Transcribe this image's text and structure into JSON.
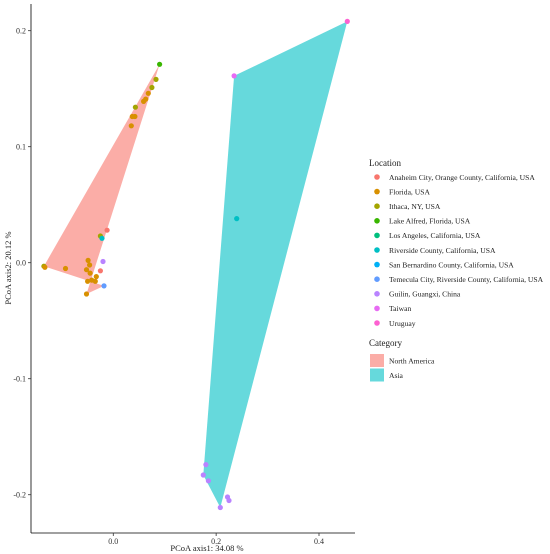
{
  "chart_data": {
    "type": "scatter",
    "xlabel": "PCoA axis1:  34.08 %",
    "ylabel": "PCoA axis2:  20.12 %",
    "xlim": [
      -0.16,
      0.47
    ],
    "ylim": [
      -0.233,
      0.223
    ],
    "x_ticks": [
      0.0,
      0.2,
      0.4
    ],
    "x_tick_labels": [
      "0.0",
      "0.2",
      "0.4"
    ],
    "y_ticks": [
      -0.2,
      -0.1,
      0.0,
      0.1,
      0.2
    ],
    "y_tick_labels": [
      "-0.2",
      "-0.1",
      "0.0",
      "0.1",
      "0.2"
    ],
    "grid": false,
    "legend_location": {
      "title": "Location",
      "items": [
        {
          "label": "Anaheim City, Orange County, California, USA",
          "color": "#F8766D"
        },
        {
          "label": "Florida, USA",
          "color": "#D89000"
        },
        {
          "label": "Ithaca, NY, USA",
          "color": "#A3A500"
        },
        {
          "label": "Lake Alfred, Florida, USA",
          "color": "#39B600"
        },
        {
          "label": "Los Angeles, California, USA",
          "color": "#00BF7D"
        },
        {
          "label": "Riverside County, California, USA",
          "color": "#00BFC4"
        },
        {
          "label": "San Bernardino County, California, USA",
          "color": "#00B0F6"
        },
        {
          "label": "Temecula City, Riverside County, California, USA",
          "color": "#619CFF"
        },
        {
          "label": "Guilin, Guangxi, China",
          "color": "#B983FF"
        },
        {
          "label": "Taiwan",
          "color": "#E76BF3"
        },
        {
          "label": "Uruguay",
          "color": "#FD61D1"
        }
      ]
    },
    "legend_category": {
      "title": "Category",
      "items": [
        {
          "label": "North America",
          "color": "#F8766D"
        },
        {
          "label": "Asia",
          "color": "#00BFC4"
        }
      ]
    },
    "hulls": [
      {
        "category": "North America",
        "color": "#F8766D",
        "opacity": 0.6,
        "points": [
          [
            -0.135,
            -0.003
          ],
          [
            0.09,
            0.171
          ],
          [
            -0.052,
            -0.027
          ],
          [
            -0.018,
            -0.02
          ]
        ]
      },
      {
        "category": "Asia",
        "color": "#00BFC4",
        "opacity": 0.6,
        "points": [
          [
            0.235,
            0.161
          ],
          [
            0.455,
            0.208
          ],
          [
            0.208,
            -0.211
          ],
          [
            0.175,
            -0.183
          ]
        ]
      }
    ],
    "points": [
      {
        "x": 0.09,
        "y": 0.171,
        "color": "#39B600"
      },
      {
        "x": 0.083,
        "y": 0.158,
        "color": "#A3A500"
      },
      {
        "x": 0.075,
        "y": 0.151,
        "color": "#A3A500"
      },
      {
        "x": 0.068,
        "y": 0.146,
        "color": "#D89000"
      },
      {
        "x": 0.063,
        "y": 0.141,
        "color": "#D89000"
      },
      {
        "x": 0.059,
        "y": 0.139,
        "color": "#D89000"
      },
      {
        "x": 0.043,
        "y": 0.134,
        "color": "#A3A500"
      },
      {
        "x": 0.042,
        "y": 0.126,
        "color": "#D89000"
      },
      {
        "x": 0.037,
        "y": 0.126,
        "color": "#D89000"
      },
      {
        "x": 0.035,
        "y": 0.118,
        "color": "#D89000"
      },
      {
        "x": -0.025,
        "y": 0.023,
        "color": "#A3A500"
      },
      {
        "x": -0.022,
        "y": 0.021,
        "color": "#00BFC4"
      },
      {
        "x": -0.012,
        "y": 0.028,
        "color": "#F8766D"
      },
      {
        "x": -0.135,
        "y": -0.003,
        "color": "#A3A500"
      },
      {
        "x": -0.133,
        "y": -0.004,
        "color": "#D89000"
      },
      {
        "x": -0.093,
        "y": -0.005,
        "color": "#D89000"
      },
      {
        "x": -0.049,
        "y": 0.002,
        "color": "#D89000"
      },
      {
        "x": -0.046,
        "y": -0.002,
        "color": "#D89000"
      },
      {
        "x": -0.052,
        "y": -0.006,
        "color": "#D89000"
      },
      {
        "x": -0.045,
        "y": -0.009,
        "color": "#D89000"
      },
      {
        "x": -0.042,
        "y": -0.015,
        "color": "#D89000"
      },
      {
        "x": -0.05,
        "y": -0.016,
        "color": "#D89000"
      },
      {
        "x": -0.02,
        "y": 0.001,
        "color": "#B983FF"
      },
      {
        "x": -0.025,
        "y": -0.007,
        "color": "#F8766D"
      },
      {
        "x": -0.033,
        "y": -0.012,
        "color": "#D89000"
      },
      {
        "x": -0.035,
        "y": -0.016,
        "color": "#D89000"
      },
      {
        "x": -0.052,
        "y": -0.027,
        "color": "#D89000"
      },
      {
        "x": -0.018,
        "y": -0.02,
        "color": "#619CFF"
      },
      {
        "x": 0.235,
        "y": 0.161,
        "color": "#E76BF3"
      },
      {
        "x": 0.455,
        "y": 0.208,
        "color": "#FD61D1"
      },
      {
        "x": 0.24,
        "y": 0.038,
        "color": "#00BFC4"
      },
      {
        "x": 0.18,
        "y": -0.174,
        "color": "#B983FF"
      },
      {
        "x": 0.175,
        "y": -0.183,
        "color": "#B983FF"
      },
      {
        "x": 0.185,
        "y": -0.188,
        "color": "#B983FF"
      },
      {
        "x": 0.222,
        "y": -0.202,
        "color": "#B983FF"
      },
      {
        "x": 0.225,
        "y": -0.205,
        "color": "#B983FF"
      },
      {
        "x": 0.208,
        "y": -0.211,
        "color": "#B983FF"
      }
    ]
  }
}
